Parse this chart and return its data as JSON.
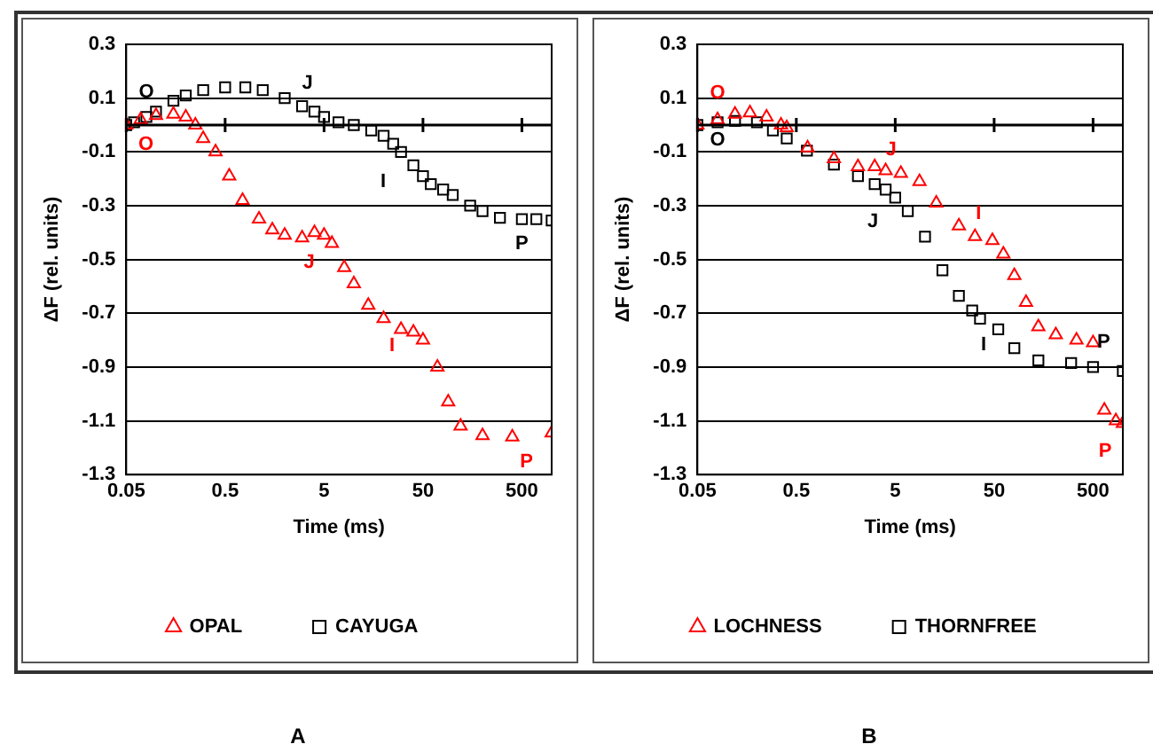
{
  "chart_data": [
    {
      "type": "scatter",
      "xlabel": "Time (ms)",
      "ylabel": "ΔF (rel. units)",
      "log": "x",
      "xlim": [
        0.05,
        1000
      ],
      "xticks": [
        0.05,
        0.5,
        5,
        50,
        500
      ],
      "ylim": [
        -1.3,
        0.3
      ],
      "yticks": [
        0.3,
        0.1,
        -0.1,
        -0.3,
        -0.5,
        -0.7,
        -0.9,
        -1.1,
        -1.3
      ],
      "grid": "y",
      "legend": "bottom",
      "ref_lines": [
        {
          "axis": "y",
          "value": 0,
          "color": "#000000"
        }
      ],
      "series": [
        {
          "name": "OPAL",
          "color": "#ff0000",
          "marker": "triangle",
          "x": [
            0.05,
            0.07,
            0.1,
            0.15,
            0.2,
            0.25,
            0.3,
            0.4,
            0.55,
            0.75,
            1.1,
            1.5,
            2,
            3,
            4,
            5,
            6,
            8,
            10,
            14,
            20,
            30,
            40,
            50,
            70,
            90,
            120,
            200,
            400,
            1000
          ],
          "values": [
            0,
            0.02,
            0.035,
            0.04,
            0.03,
            0,
            -0.05,
            -0.1,
            -0.19,
            -0.28,
            -0.35,
            -0.39,
            -0.41,
            -0.42,
            -0.4,
            -0.41,
            -0.44,
            -0.53,
            -0.59,
            -0.67,
            -0.72,
            -0.76,
            -0.77,
            -0.8,
            -0.9,
            -1.03,
            -1.12,
            -1.155,
            -1.16,
            -1.145
          ]
        },
        {
          "name": "CAYUGA",
          "color": "#000000",
          "marker": "square",
          "x": [
            0.05,
            0.06,
            0.08,
            0.1,
            0.15,
            0.2,
            0.3,
            0.5,
            0.8,
            1.2,
            2,
            3,
            4,
            5,
            7,
            10,
            15,
            20,
            25,
            30,
            40,
            50,
            60,
            80,
            100,
            150,
            200,
            300,
            500,
            700,
            1000
          ],
          "values": [
            0,
            0.01,
            0.03,
            0.05,
            0.09,
            0.11,
            0.13,
            0.14,
            0.14,
            0.13,
            0.1,
            0.07,
            0.05,
            0.03,
            0.01,
            0,
            -0.02,
            -0.04,
            -0.07,
            -0.1,
            -0.15,
            -0.19,
            -0.22,
            -0.24,
            -0.26,
            -0.3,
            -0.32,
            -0.345,
            -0.35,
            -0.35,
            -0.355
          ]
        }
      ],
      "annotations": [
        {
          "text": "O",
          "x": 0.08,
          "y": 0.03
        },
        {
          "text": "J",
          "x": 3,
          "y": 0.07
        },
        {
          "text": "I",
          "x": 40,
          "y": -0.15
        },
        {
          "text": "P",
          "x": 500,
          "y": -0.35
        },
        {
          "text": "O",
          "x": 0.07,
          "y": 0.02
        },
        {
          "text": "J",
          "x": 3,
          "y": -0.42
        },
        {
          "text": "I",
          "x": 30,
          "y": -0.76
        },
        {
          "text": "P",
          "x": 400,
          "y": -1.16
        },
        "A"
      ]
    },
    {
      "type": "scatter",
      "xlabel": "Time (ms)",
      "ylabel": "ΔF (rel. units)",
      "log": "x",
      "xlim": [
        0.05,
        1000
      ],
      "xticks": [
        0.05,
        0.5,
        5,
        50,
        500
      ],
      "ylim": [
        -1.3,
        0.3
      ],
      "yticks": [
        0.3,
        0.1,
        -0.1,
        -0.3,
        -0.5,
        -0.7,
        -0.9,
        -1.1,
        -1.3
      ],
      "grid": "y",
      "legend": "bottom",
      "ref_lines": [
        {
          "axis": "y",
          "value": 0,
          "color": "#000000"
        }
      ],
      "series": [
        {
          "name": "LOCHNESS",
          "color": "#ff0000",
          "marker": "triangle",
          "x": [
            0.05,
            0.08,
            0.12,
            0.17,
            0.25,
            0.35,
            0.4,
            0.65,
            1.2,
            2.1,
            3.1,
            4,
            5.7,
            8.8,
            13,
            22,
            32,
            48,
            62,
            80,
            105,
            140,
            210,
            340,
            500,
            650,
            850,
            1000
          ],
          "values": [
            0,
            0.02,
            0.04,
            0.045,
            0.03,
            0,
            -0.01,
            -0.085,
            -0.125,
            -0.155,
            -0.155,
            -0.17,
            -0.18,
            -0.21,
            -0.29,
            -0.375,
            -0.415,
            -0.43,
            -0.48,
            -0.56,
            -0.66,
            -0.75,
            -0.78,
            -0.8,
            -0.81,
            -1.06,
            -1.1,
            -1.11
          ]
        },
        {
          "name": "THORNFREE",
          "color": "#000000",
          "marker": "square",
          "x": [
            0.05,
            0.08,
            0.12,
            0.2,
            0.29,
            0.4,
            0.64,
            1.2,
            2.1,
            3.1,
            4,
            5,
            6.7,
            10,
            15,
            22,
            30,
            36,
            55,
            80,
            140,
            300,
            500,
            1000
          ],
          "values": [
            0,
            0.01,
            0.015,
            0.01,
            -0.02,
            -0.05,
            -0.095,
            -0.147,
            -0.19,
            -0.22,
            -0.24,
            -0.27,
            -0.32,
            -0.415,
            -0.54,
            -0.635,
            -0.69,
            -0.72,
            -0.76,
            -0.83,
            -0.875,
            -0.885,
            -0.9,
            -0.915
          ]
        }
      ],
      "annotations": [
        {
          "text": "O",
          "x": 0.08,
          "y": 0.02
        },
        {
          "text": "O",
          "x": 0.08,
          "y": 0.01
        },
        {
          "text": "J",
          "x": 4,
          "y": -0.17
        },
        {
          "text": "J",
          "x": 3.1,
          "y": -0.22
        },
        {
          "text": "I",
          "x": 32,
          "y": -0.415
        },
        {
          "text": "I",
          "x": 36,
          "y": -0.72
        },
        {
          "text": "P",
          "x": 500,
          "y": -0.9
        },
        {
          "text": "P",
          "x": 850,
          "y": -1.1
        },
        "B"
      ]
    }
  ]
}
